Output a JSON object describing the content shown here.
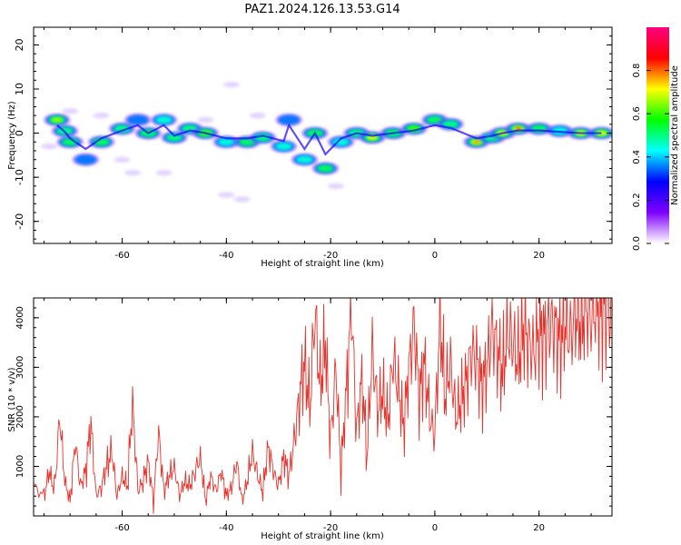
{
  "title": "PAZ1.2024.126.13.53.G14",
  "chart_data": [
    {
      "type": "heatmap",
      "xlabel": "Height of straight line (km)",
      "ylabel": "Frequency (Hz)",
      "xlim": [
        -77,
        34
      ],
      "ylim": [
        -25,
        24
      ],
      "xticks": [
        -60,
        -40,
        -20,
        0,
        20
      ],
      "xtick_labels": [
        "-60",
        "-40",
        "-20",
        "0",
        "20"
      ],
      "yticks": [
        -20,
        -10,
        0,
        10,
        20
      ],
      "ytick_labels": [
        "-20",
        "-10",
        "0",
        "10",
        "20"
      ],
      "colorbar": {
        "label": "Normalized spectral amplitude",
        "range": [
          0,
          1
        ],
        "ticks": [
          0.0,
          0.2,
          0.4,
          0.6,
          0.8
        ],
        "tick_labels": [
          "0.0",
          "0.2",
          "0.4",
          "0.6",
          "0.8"
        ],
        "colormap": [
          "#ffffff",
          "#8000ff",
          "#0000ff",
          "#00ffff",
          "#00ff00",
          "#ffff00",
          "#ff0000",
          "#ff0080"
        ]
      },
      "blobs": [
        {
          "x": -72.5,
          "f": 3,
          "amp": 0.65
        },
        {
          "x": -71,
          "f": 0.5,
          "amp": 0.5
        },
        {
          "x": -70,
          "f": -2,
          "amp": 0.55
        },
        {
          "x": -67,
          "f": -6,
          "amp": 0.35
        },
        {
          "x": -64,
          "f": -2,
          "amp": 0.55
        },
        {
          "x": -60,
          "f": 1,
          "amp": 0.5
        },
        {
          "x": -57,
          "f": 3,
          "amp": 0.35
        },
        {
          "x": -55,
          "f": 0,
          "amp": 0.55
        },
        {
          "x": -52,
          "f": 3,
          "amp": 0.45
        },
        {
          "x": -50,
          "f": -1,
          "amp": 0.5
        },
        {
          "x": -47,
          "f": 1,
          "amp": 0.5
        },
        {
          "x": -44,
          "f": 0,
          "amp": 0.6
        },
        {
          "x": -40,
          "f": -2,
          "amp": 0.45
        },
        {
          "x": -36,
          "f": -2,
          "amp": 0.55
        },
        {
          "x": -33,
          "f": -1,
          "amp": 0.5
        },
        {
          "x": -29,
          "f": -3,
          "amp": 0.45
        },
        {
          "x": -28,
          "f": 3,
          "amp": 0.35
        },
        {
          "x": -25,
          "f": -6,
          "amp": 0.45
        },
        {
          "x": -23,
          "f": 0,
          "amp": 0.55
        },
        {
          "x": -21,
          "f": -8,
          "amp": 0.55
        },
        {
          "x": -18,
          "f": -2,
          "amp": 0.45
        },
        {
          "x": -15,
          "f": 0,
          "amp": 0.5
        },
        {
          "x": -12,
          "f": -1,
          "amp": 0.75
        },
        {
          "x": -8,
          "f": 0,
          "amp": 0.55
        },
        {
          "x": -4,
          "f": 1,
          "amp": 0.6
        },
        {
          "x": 0,
          "f": 3,
          "amp": 0.55
        },
        {
          "x": 3,
          "f": 2,
          "amp": 0.5
        },
        {
          "x": 8,
          "f": -2,
          "amp": 0.8
        },
        {
          "x": 11,
          "f": -1,
          "amp": 0.5
        },
        {
          "x": 13,
          "f": 0,
          "amp": 0.7
        },
        {
          "x": 16,
          "f": 1,
          "amp": 0.85
        },
        {
          "x": 20,
          "f": 1,
          "amp": 0.55
        },
        {
          "x": 24,
          "f": 0.5,
          "amp": 0.45
        },
        {
          "x": 28,
          "f": 0,
          "amp": 0.7
        },
        {
          "x": 32,
          "f": 0,
          "amp": 0.75
        }
      ],
      "faint_patches": [
        {
          "x": -74,
          "f": -3
        },
        {
          "x": -60,
          "f": -6
        },
        {
          "x": -58,
          "f": -9
        },
        {
          "x": -52,
          "f": -9
        },
        {
          "x": -40,
          "f": -14
        },
        {
          "x": -37,
          "f": -15
        },
        {
          "x": -44,
          "f": 3
        },
        {
          "x": -39,
          "f": 11
        },
        {
          "x": -34,
          "f": 4
        },
        {
          "x": -19,
          "f": -12
        },
        {
          "x": -70,
          "f": 5
        },
        {
          "x": -64,
          "f": 4
        }
      ]
    },
    {
      "type": "line",
      "xlabel": "Height of straight line (km)",
      "ylabel": "SNR (10 * v/v)",
      "xlim": [
        -77,
        34
      ],
      "ylim": [
        0,
        4400
      ],
      "xticks": [
        -60,
        -40,
        -20,
        0,
        20
      ],
      "xtick_labels": [
        "-60",
        "-40",
        "-20",
        "0",
        "20"
      ],
      "yticks": [
        1000,
        2000,
        3000,
        4000
      ],
      "ytick_labels": [
        "1000",
        "2000",
        "3000",
        "4000"
      ],
      "series": [
        {
          "color": "#e8322c",
          "x": [
            -77,
            -75,
            -74,
            -73,
            -72,
            -71,
            -70,
            -69,
            -68,
            -67,
            -66,
            -65,
            -64,
            -63,
            -62,
            -61,
            -60,
            -59,
            -58,
            -57,
            -56,
            -55,
            -54,
            -53,
            -52,
            -51,
            -50,
            -49,
            -48,
            -47,
            -46,
            -45,
            -44,
            -43,
            -42,
            -41,
            -40,
            -39,
            -38,
            -37,
            -36,
            -35,
            -34,
            -33,
            -32,
            -31,
            -30,
            -29,
            -28,
            -27,
            -26,
            -25,
            -24,
            -23,
            -22,
            -21,
            -20,
            -19,
            -18,
            -17,
            -16,
            -15,
            -14,
            -13,
            -12,
            -11,
            -10,
            -9,
            -8,
            -7,
            -6,
            -5,
            -4,
            -3,
            -2,
            -1,
            0,
            1,
            2,
            3,
            4,
            5,
            6,
            7,
            8,
            9,
            10,
            11,
            12,
            13,
            14,
            15,
            16,
            17,
            18,
            19,
            20,
            21,
            22,
            23,
            24,
            25,
            26,
            27,
            28,
            29,
            30,
            31,
            32,
            33,
            34
          ],
          "y": [
            600,
            400,
            900,
            500,
            2000,
            700,
            300,
            1500,
            600,
            900,
            1900,
            400,
            600,
            1000,
            1300,
            400,
            800,
            600,
            2300,
            500,
            700,
            1100,
            300,
            1700,
            500,
            800,
            1000,
            400,
            700,
            600,
            900,
            1200,
            300,
            800,
            500,
            900,
            400,
            600,
            1100,
            300,
            700,
            1300,
            800,
            500,
            1400,
            900,
            600,
            1200,
            800,
            1500,
            2400,
            3100,
            2200,
            4100,
            2600,
            3500,
            1500,
            3000,
            900,
            2500,
            4200,
            1700,
            2800,
            1200,
            3400,
            2100,
            2500,
            1900,
            3200,
            2600,
            1800,
            2900,
            3900,
            2400,
            3100,
            2000,
            1600,
            4000,
            2400,
            3100,
            2000,
            2300,
            2700,
            3300,
            3200,
            2600,
            3000,
            3800,
            3300,
            2900,
            3700,
            3500,
            3100,
            3800,
            3500,
            3300,
            3700,
            3600,
            3900,
            3800,
            3500,
            3900,
            3600,
            4100,
            3900,
            4200,
            4000,
            4300,
            4100,
            4200,
            4150
          ]
        }
      ]
    }
  ]
}
